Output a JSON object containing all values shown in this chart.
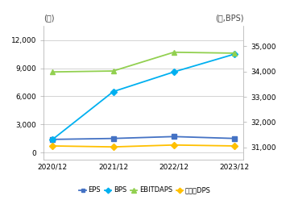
{
  "x_labels": [
    "2020/12",
    "2021/12",
    "2022/12",
    "2023/12"
  ],
  "x_values": [
    0,
    1,
    2,
    3
  ],
  "EPS": [
    1400,
    1500,
    1700,
    1500
  ],
  "BPS": [
    1400,
    6500,
    8600,
    10500
  ],
  "EBITDAPS": [
    8600,
    8700,
    10700,
    10600
  ],
  "DPS": [
    700,
    600,
    800,
    700
  ],
  "left_ylim": [
    -800,
    13500
  ],
  "left_yticks": [
    0,
    3000,
    6000,
    9000,
    12000
  ],
  "right_ylim": [
    30500,
    35800
  ],
  "right_yticks": [
    31000,
    32000,
    33000,
    34000,
    35000
  ],
  "ylabel_left": "(원)",
  "ylabel_right": "(원,BPS)",
  "color_eps": "#4472c4",
  "color_bps": "#00b0f0",
  "color_ebitdaps": "#92d050",
  "color_dps": "#ffc000",
  "bg_color": "#ffffff",
  "grid_color": "#cccccc",
  "legend_labels": [
    "EPS",
    "BPS",
    "EBITDAPS",
    "보통주DPS"
  ]
}
